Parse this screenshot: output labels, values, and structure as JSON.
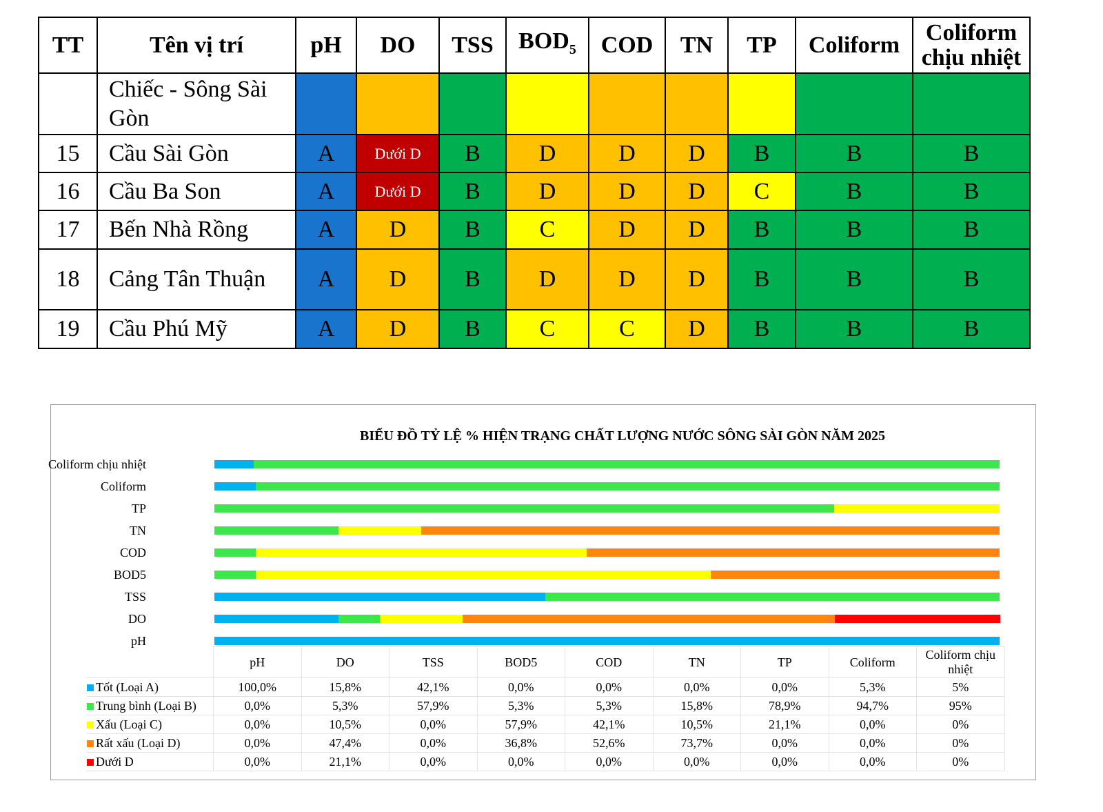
{
  "table": {
    "headers": [
      "TT",
      "Tên vị trí",
      "pH",
      "DO",
      "TSS",
      "BOD",
      "COD",
      "TN",
      "TP",
      "Coliform",
      "Coliform chịu nhiệt"
    ],
    "bod_subscript": "5",
    "rows": [
      {
        "tt": "",
        "name": "Chiếc - Sông Sài Gòn",
        "values": [
          "",
          "",
          "",
          "",
          "",
          "",
          "",
          "",
          ""
        ],
        "classes": [
          "A",
          "D",
          "B",
          "C",
          "D",
          "D",
          "C",
          "B",
          "B"
        ]
      },
      {
        "tt": "15",
        "name": "Cầu Sài Gòn",
        "values": [
          "A",
          "Dưới D",
          "B",
          "D",
          "D",
          "D",
          "B",
          "B",
          "B"
        ],
        "classes": [
          "A",
          "U",
          "B",
          "D",
          "D",
          "D",
          "B",
          "B",
          "B"
        ]
      },
      {
        "tt": "16",
        "name": "Cầu Ba Son",
        "values": [
          "A",
          "Dưới D",
          "B",
          "D",
          "D",
          "D",
          "C",
          "B",
          "B"
        ],
        "classes": [
          "A",
          "U",
          "B",
          "D",
          "D",
          "D",
          "C",
          "B",
          "B"
        ]
      },
      {
        "tt": "17",
        "name": "Bến Nhà Rồng",
        "values": [
          "A",
          "D",
          "B",
          "C",
          "D",
          "D",
          "B",
          "B",
          "B"
        ],
        "classes": [
          "A",
          "D",
          "B",
          "C",
          "D",
          "D",
          "B",
          "B",
          "B"
        ]
      },
      {
        "tt": "18",
        "name": "Cảng Tân Thuận",
        "values": [
          "A",
          "D",
          "B",
          "D",
          "D",
          "D",
          "B",
          "B",
          "B"
        ],
        "classes": [
          "A",
          "D",
          "B",
          "D",
          "D",
          "D",
          "B",
          "B",
          "B"
        ]
      },
      {
        "tt": "19",
        "name": "Cầu Phú Mỹ",
        "values": [
          "A",
          "D",
          "B",
          "C",
          "C",
          "D",
          "B",
          "B",
          "B"
        ],
        "classes": [
          "A",
          "D",
          "B",
          "C",
          "C",
          "D",
          "B",
          "B",
          "B"
        ]
      }
    ]
  },
  "chart_data": {
    "type": "bar",
    "orientation": "horizontal-stacked-100",
    "title": "BIỂU ĐỒ TỶ LỆ % HIỆN TRẠNG CHẤT LƯỢNG NƯỚC SÔNG SÀI GÒN  NĂM 2025",
    "categories": [
      "pH",
      "DO",
      "TSS",
      "BOD5",
      "COD",
      "TN",
      "TP",
      "Coliform",
      "Coliform chịu nhiệt"
    ],
    "series": [
      {
        "name": "Tốt (Loại A)",
        "color": "#00b0f0",
        "values": [
          100,
          15.8,
          42.1,
          0,
          0,
          0,
          0,
          5.3,
          5
        ],
        "labels": [
          "100,0%",
          "15,8%",
          "42,1%",
          "0,0%",
          "0,0%",
          "0,0%",
          "0,0%",
          "5,3%",
          "5%"
        ]
      },
      {
        "name": "Trung bình (Loại B)",
        "color": "#3ae84a",
        "values": [
          0,
          5.3,
          57.9,
          5.3,
          5.3,
          15.8,
          78.9,
          94.7,
          95
        ],
        "labels": [
          "0,0%",
          "5,3%",
          "57,9%",
          "5,3%",
          "5,3%",
          "15,8%",
          "78,9%",
          "94,7%",
          "95%"
        ]
      },
      {
        "name": "Xấu (Loại C)",
        "color": "#ffff00",
        "values": [
          0,
          10.5,
          0,
          57.9,
          42.1,
          10.5,
          21.1,
          0,
          0
        ],
        "labels": [
          "0,0%",
          "10,5%",
          "0,0%",
          "57,9%",
          "42,1%",
          "10,5%",
          "21,1%",
          "0,0%",
          "0%"
        ]
      },
      {
        "name": "Rất xấu (Loại D)",
        "color": "#ff8412",
        "values": [
          0,
          47.4,
          0,
          36.8,
          52.6,
          73.7,
          0,
          0,
          0
        ],
        "labels": [
          "0,0%",
          "47,4%",
          "0,0%",
          "36,8%",
          "52,6%",
          "73,7%",
          "0,0%",
          "0,0%",
          "0%"
        ]
      },
      {
        "name": "Dưới D",
        "color": "#ff0000",
        "values": [
          0,
          21.1,
          0,
          0,
          0,
          0,
          0,
          0,
          0
        ],
        "labels": [
          "0,0%",
          "21,1%",
          "0,0%",
          "0,0%",
          "0,0%",
          "0,0%",
          "0,0%",
          "0,0%",
          "0%"
        ]
      }
    ],
    "xlim": [
      0,
      100
    ],
    "legend": "data-table-bottom"
  }
}
